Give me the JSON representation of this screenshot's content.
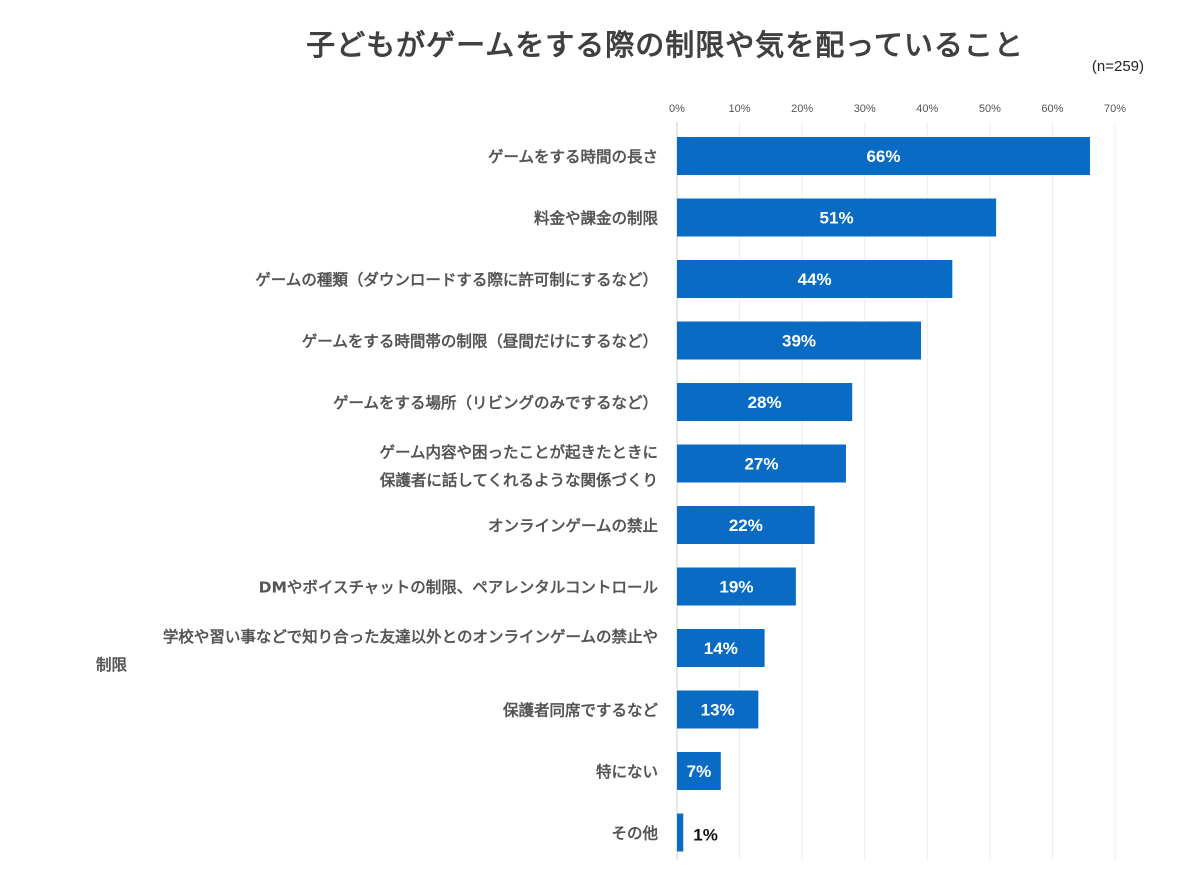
{
  "chart_data": {
    "type": "bar",
    "orientation": "horizontal",
    "title": "子どもがゲームをする際の制限や気を配っていること",
    "sample_size": "(n=259)",
    "xlim": [
      0,
      70
    ],
    "x_ticks": [
      "0%",
      "10%",
      "20%",
      "30%",
      "40%",
      "50%",
      "60%",
      "70%"
    ],
    "grid": "vertical",
    "bar_color": "#0A6BC4",
    "categories": [
      [
        "ゲームをする時間の長さ"
      ],
      [
        "料金や課金の制限"
      ],
      [
        "ゲームの種類（ダウンロードする際に許可制にするなど）"
      ],
      [
        "ゲームをする時間帯の制限（昼間だけにするなど）"
      ],
      [
        "ゲームをする場所（リビングのみでするなど）"
      ],
      [
        "ゲーム内容や困ったことが起きたときに",
        "保護者に話してくれるような関係づくり"
      ],
      [
        "オンラインゲームの禁止"
      ],
      [
        "DMやボイスチャットの制限、ペアレンタルコントロール"
      ],
      [
        "学校や習い事などで知り合った友達以外とのオンラインゲームの禁止や",
        "制限"
      ],
      [
        "保護者同席でするなど"
      ],
      [
        "特にない"
      ],
      [
        "その他"
      ]
    ],
    "values": [
      66,
      51,
      44,
      39,
      28,
      27,
      22,
      19,
      14,
      13,
      7,
      1
    ],
    "value_labels": [
      "66%",
      "51%",
      "44%",
      "39%",
      "28%",
      "27%",
      "22%",
      "19%",
      "14%",
      "13%",
      "7%",
      "1%"
    ]
  }
}
